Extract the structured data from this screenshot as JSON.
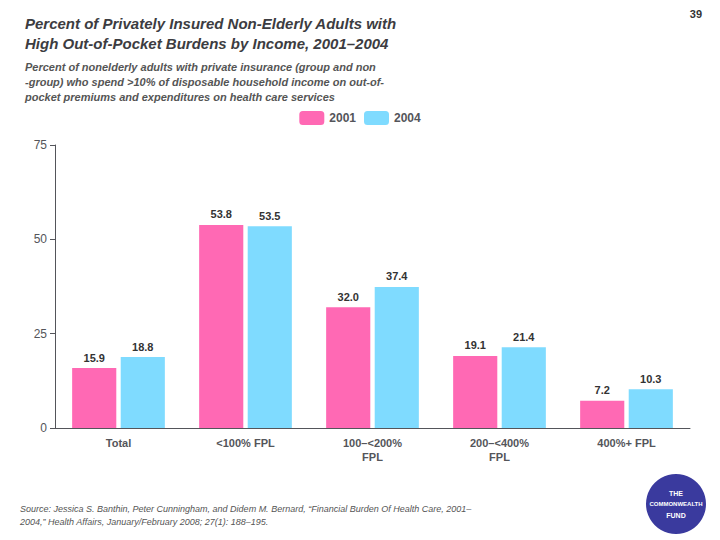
{
  "chart_data": {
    "type": "bar",
    "title": "Percent of Privately Insured Non-Elderly Adults with\nHigh Out-of-Pocket Burdens by Income, 2001–2004",
    "subtitle": "Percent of nonelderly adults with private insurance (group and non\n-group) who spend >10% of disposable household income on out-of-\npocket premiums and expenditures on health care services",
    "categories": [
      "Total",
      "<100% FPL",
      "100–<200%\nFPL",
      "200–<400%\nFPL",
      "400%+ FPL"
    ],
    "series": [
      {
        "name": "2001",
        "color": "#FF69B4",
        "values": [
          15.9,
          53.8,
          32.0,
          19.1,
          7.2
        ],
        "value_labels": [
          "15.9",
          "53.8",
          "32.0",
          "19.1",
          "7.2"
        ]
      },
      {
        "name": "2004",
        "color": "#7FDBFF",
        "values": [
          18.8,
          53.5,
          37.4,
          21.4,
          10.3
        ],
        "value_labels": [
          "18.8",
          "53.5",
          "37.4",
          "21.4",
          "10.3"
        ]
      }
    ],
    "ylim": [
      0,
      75
    ],
    "yticks": [
      0,
      25,
      50,
      75
    ],
    "grid": false,
    "legend": "top",
    "data_labels": true,
    "annotations": [
      "39",
      "Source: Jessica S. Banthin, Peter Cunningham, and Didem M. Bernard, “Financial Burden Of Health Care, 2001–\n2004,” Health Affairs, January/February 2008; 27(1): 188–195.",
      "THE",
      "COMMONWEALTH",
      "FUND"
    ]
  }
}
